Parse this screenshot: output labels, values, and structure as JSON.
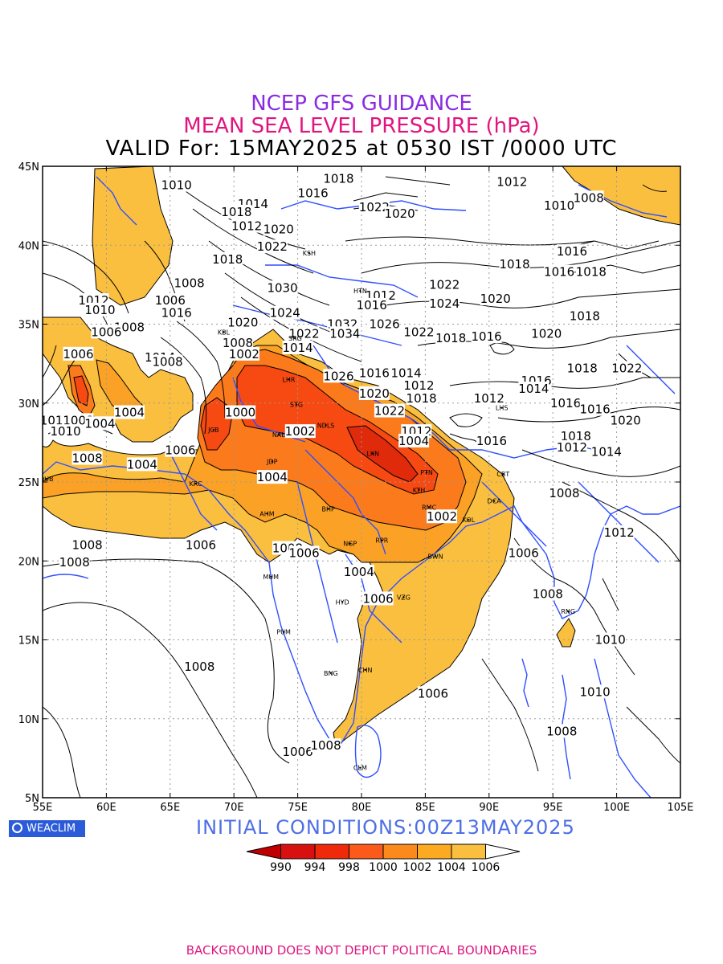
{
  "header": {
    "line1": "NCEP GFS GUIDANCE",
    "line2": "MEAN SEA LEVEL PRESSURE (hPa)",
    "line3": "VALID For: 15MAY2025 at 0530 IST /0000 UTC"
  },
  "footer": {
    "logo_text": "WEACLIM",
    "initial_conditions": "INITIAL  CONDITIONS:00Z13MAY2025",
    "disclaimer": "BACKGROUND DOES NOT DEPICT POLITICAL BOUNDARIES"
  },
  "axes": {
    "lon_range": [
      55,
      105
    ],
    "lat_range": [
      5,
      45
    ],
    "lon_ticks": [
      "55E",
      "60E",
      "65E",
      "70E",
      "75E",
      "80E",
      "85E",
      "90E",
      "95E",
      "100E",
      "105E"
    ],
    "lat_ticks": [
      "5N",
      "10N",
      "15N",
      "20N",
      "25N",
      "30N",
      "35N",
      "40N",
      "45N"
    ],
    "grid": "dotted"
  },
  "colorbar": {
    "ticks": [
      "990",
      "994",
      "998",
      "1000",
      "1002",
      "1004",
      "1006"
    ],
    "colors": [
      "#c00000",
      "#d81010",
      "#ee2a0a",
      "#fb5a1a",
      "#fb8a1c",
      "#fbaa22",
      "#fbbf3f",
      "#ffffff"
    ]
  },
  "colors": {
    "shade_1006": "#fbbf3f",
    "shade_1004": "#fba226",
    "shade_1002": "#fb7a1c",
    "shade_1000": "#f64a12",
    "coastline": "#2f4fff",
    "contour": "#000000"
  },
  "cities": [
    {
      "name": "KSH",
      "lon": 75.9,
      "lat": 39.5
    },
    {
      "name": "HTN",
      "lon": 79.9,
      "lat": 37.1
    },
    {
      "name": "KBL",
      "lon": 69.2,
      "lat": 34.5
    },
    {
      "name": "SRG",
      "lon": 74.8,
      "lat": 34.1
    },
    {
      "name": "LHR",
      "lon": 74.3,
      "lat": 31.5
    },
    {
      "name": "STG",
      "lon": 74.9,
      "lat": 29.9
    },
    {
      "name": "JCB",
      "lon": 68.4,
      "lat": 28.3
    },
    {
      "name": "NAL",
      "lon": 73.5,
      "lat": 28.0
    },
    {
      "name": "NDLS",
      "lon": 77.2,
      "lat": 28.6
    },
    {
      "name": "JDP",
      "lon": 73.0,
      "lat": 26.3
    },
    {
      "name": "LKN",
      "lon": 80.9,
      "lat": 26.8
    },
    {
      "name": "PTN",
      "lon": 85.1,
      "lat": 25.6
    },
    {
      "name": "KTH",
      "lon": 84.5,
      "lat": 24.5
    },
    {
      "name": "KRC",
      "lon": 67.0,
      "lat": 24.9
    },
    {
      "name": "DUB",
      "lon": 55.3,
      "lat": 25.2
    },
    {
      "name": "AHM",
      "lon": 72.6,
      "lat": 23.0
    },
    {
      "name": "BHP",
      "lon": 77.4,
      "lat": 23.3
    },
    {
      "name": "RMC",
      "lon": 85.3,
      "lat": 23.4
    },
    {
      "name": "KOL",
      "lon": 88.4,
      "lat": 22.6
    },
    {
      "name": "NGP",
      "lon": 79.1,
      "lat": 21.1
    },
    {
      "name": "RPR",
      "lon": 81.6,
      "lat": 21.3
    },
    {
      "name": "BWN",
      "lon": 85.8,
      "lat": 20.3
    },
    {
      "name": "MUM",
      "lon": 72.9,
      "lat": 19.0
    },
    {
      "name": "HYD",
      "lon": 78.5,
      "lat": 17.4
    },
    {
      "name": "VZG",
      "lon": 83.3,
      "lat": 17.7
    },
    {
      "name": "PUM",
      "lon": 73.9,
      "lat": 15.5
    },
    {
      "name": "BNG",
      "lon": 77.6,
      "lat": 12.9
    },
    {
      "name": "CHN",
      "lon": 80.3,
      "lat": 13.1
    },
    {
      "name": "CLM",
      "lon": 79.9,
      "lat": 6.9
    },
    {
      "name": "RNG",
      "lon": 96.2,
      "lat": 16.8
    },
    {
      "name": "DCA",
      "lon": 90.4,
      "lat": 23.8
    },
    {
      "name": "CBT",
      "lon": 91.1,
      "lat": 25.5
    },
    {
      "name": "LHS",
      "lon": 91.0,
      "lat": 29.7
    }
  ],
  "contour_labels": [
    {
      "text": "1010",
      "lon": 65.5,
      "lat": 43.8
    },
    {
      "text": "1018",
      "lon": 78.2,
      "lat": 44.2
    },
    {
      "text": "1016",
      "lon": 76.2,
      "lat": 43.3
    },
    {
      "text": "1014",
      "lon": 71.5,
      "lat": 42.6
    },
    {
      "text": "1018",
      "lon": 70.2,
      "lat": 42.1
    },
    {
      "text": "1022",
      "lon": 81.0,
      "lat": 42.4
    },
    {
      "text": "1020",
      "lon": 83.0,
      "lat": 42.0
    },
    {
      "text": "1012",
      "lon": 91.8,
      "lat": 44.0
    },
    {
      "text": "1008",
      "lon": 97.8,
      "lat": 43.0
    },
    {
      "text": "1010",
      "lon": 95.5,
      "lat": 42.5
    },
    {
      "text": "1012",
      "lon": 71.0,
      "lat": 41.2
    },
    {
      "text": "1020",
      "lon": 73.5,
      "lat": 41.0
    },
    {
      "text": "1022",
      "lon": 73.0,
      "lat": 39.9
    },
    {
      "text": "1018",
      "lon": 69.5,
      "lat": 39.1
    },
    {
      "text": "1016",
      "lon": 96.5,
      "lat": 39.6
    },
    {
      "text": "1018",
      "lon": 92.0,
      "lat": 38.8
    },
    {
      "text": "1016",
      "lon": 95.5,
      "lat": 38.3
    },
    {
      "text": "1018",
      "lon": 98.0,
      "lat": 38.3
    },
    {
      "text": "1008",
      "lon": 66.5,
      "lat": 37.6
    },
    {
      "text": "1030",
      "lon": 73.8,
      "lat": 37.3
    },
    {
      "text": "1022",
      "lon": 86.5,
      "lat": 37.5
    },
    {
      "text": "1012",
      "lon": 81.5,
      "lat": 36.8
    },
    {
      "text": "1020",
      "lon": 90.5,
      "lat": 36.6
    },
    {
      "text": "1012",
      "lon": 59.0,
      "lat": 36.5
    },
    {
      "text": "1006",
      "lon": 65.0,
      "lat": 36.5
    },
    {
      "text": "1024",
      "lon": 86.5,
      "lat": 36.3
    },
    {
      "text": "1016",
      "lon": 80.8,
      "lat": 36.2
    },
    {
      "text": "1010",
      "lon": 59.5,
      "lat": 35.9
    },
    {
      "text": "1016",
      "lon": 65.5,
      "lat": 35.7
    },
    {
      "text": "1024",
      "lon": 74.0,
      "lat": 35.7
    },
    {
      "text": "1018",
      "lon": 97.5,
      "lat": 35.5
    },
    {
      "text": "1020",
      "lon": 70.7,
      "lat": 35.1
    },
    {
      "text": "1026",
      "lon": 81.8,
      "lat": 35.0
    },
    {
      "text": "1008",
      "lon": 61.8,
      "lat": 34.8
    },
    {
      "text": "1032",
      "lon": 78.5,
      "lat": 35.0
    },
    {
      "text": "1022",
      "lon": 84.5,
      "lat": 34.5
    },
    {
      "text": "1006",
      "lon": 60.0,
      "lat": 34.5
    },
    {
      "text": "1034",
      "lon": 78.7,
      "lat": 34.4
    },
    {
      "text": "1022",
      "lon": 75.5,
      "lat": 34.4
    },
    {
      "text": "1018",
      "lon": 87.0,
      "lat": 34.1
    },
    {
      "text": "1016",
      "lon": 89.8,
      "lat": 34.2
    },
    {
      "text": "1020",
      "lon": 94.5,
      "lat": 34.4
    },
    {
      "text": "1008",
      "lon": 70.3,
      "lat": 33.8
    },
    {
      "text": "1014",
      "lon": 75.0,
      "lat": 33.5
    },
    {
      "text": "1002",
      "lon": 70.8,
      "lat": 33.1
    },
    {
      "text": "1006",
      "lon": 57.8,
      "lat": 33.1
    },
    {
      "text": "1014",
      "lon": 64.2,
      "lat": 32.9
    },
    {
      "text": "1008",
      "lon": 64.8,
      "lat": 32.6
    },
    {
      "text": "1018",
      "lon": 97.3,
      "lat": 32.2
    },
    {
      "text": "1022",
      "lon": 100.8,
      "lat": 32.2
    },
    {
      "text": "1026",
      "lon": 78.2,
      "lat": 31.7
    },
    {
      "text": "1016",
      "lon": 81.0,
      "lat": 31.9
    },
    {
      "text": "1014",
      "lon": 83.5,
      "lat": 31.9
    },
    {
      "text": "1016",
      "lon": 93.7,
      "lat": 31.4
    },
    {
      "text": "1012",
      "lon": 84.5,
      "lat": 31.1
    },
    {
      "text": "1014",
      "lon": 93.5,
      "lat": 30.9
    },
    {
      "text": "1020",
      "lon": 81.0,
      "lat": 30.6
    },
    {
      "text": "1018",
      "lon": 84.7,
      "lat": 30.3
    },
    {
      "text": "1012",
      "lon": 90.0,
      "lat": 30.3
    },
    {
      "text": "1016",
      "lon": 96.0,
      "lat": 30.0
    },
    {
      "text": "1016",
      "lon": 98.3,
      "lat": 29.6
    },
    {
      "text": "1022",
      "lon": 82.2,
      "lat": 29.5
    },
    {
      "text": "1012",
      "lon": 56.0,
      "lat": 28.9
    },
    {
      "text": "1008",
      "lon": 57.8,
      "lat": 28.9
    },
    {
      "text": "1004",
      "lon": 59.5,
      "lat": 28.7
    },
    {
      "text": "1004",
      "lon": 61.8,
      "lat": 29.4
    },
    {
      "text": "1000",
      "lon": 70.5,
      "lat": 29.4
    },
    {
      "text": "1020",
      "lon": 100.7,
      "lat": 28.9
    },
    {
      "text": "1010",
      "lon": 56.8,
      "lat": 28.2
    },
    {
      "text": "1002",
      "lon": 75.2,
      "lat": 28.2
    },
    {
      "text": "1012",
      "lon": 84.3,
      "lat": 28.2
    },
    {
      "text": "1018",
      "lon": 96.8,
      "lat": 27.9
    },
    {
      "text": "1004",
      "lon": 84.1,
      "lat": 27.6
    },
    {
      "text": "1016",
      "lon": 90.2,
      "lat": 27.6
    },
    {
      "text": "1012",
      "lon": 96.5,
      "lat": 27.2
    },
    {
      "text": "1006",
      "lon": 65.8,
      "lat": 27.0
    },
    {
      "text": "1014",
      "lon": 99.2,
      "lat": 26.9
    },
    {
      "text": "1008",
      "lon": 58.5,
      "lat": 26.5
    },
    {
      "text": "1004",
      "lon": 62.8,
      "lat": 26.1
    },
    {
      "text": "1004",
      "lon": 73.0,
      "lat": 25.3
    },
    {
      "text": "1008",
      "lon": 95.9,
      "lat": 24.3
    },
    {
      "text": "1002",
      "lon": 86.3,
      "lat": 22.8
    },
    {
      "text": "1012",
      "lon": 100.2,
      "lat": 21.8
    },
    {
      "text": "1008",
      "lon": 58.5,
      "lat": 21.0
    },
    {
      "text": "1006",
      "lon": 67.4,
      "lat": 21.0
    },
    {
      "text": "1008",
      "lon": 74.2,
      "lat": 20.8
    },
    {
      "text": "1006",
      "lon": 75.5,
      "lat": 20.5
    },
    {
      "text": "1006",
      "lon": 92.7,
      "lat": 20.5
    },
    {
      "text": "1008",
      "lon": 57.5,
      "lat": 19.9
    },
    {
      "text": "1004",
      "lon": 79.8,
      "lat": 19.3
    },
    {
      "text": "1006",
      "lon": 81.3,
      "lat": 17.6
    },
    {
      "text": "1008",
      "lon": 94.6,
      "lat": 17.9
    },
    {
      "text": "1010",
      "lon": 99.5,
      "lat": 15.0
    },
    {
      "text": "1008",
      "lon": 67.3,
      "lat": 13.3
    },
    {
      "text": "1006",
      "lon": 85.6,
      "lat": 11.6
    },
    {
      "text": "1010",
      "lon": 98.3,
      "lat": 11.7
    },
    {
      "text": "1008",
      "lon": 95.7,
      "lat": 9.2
    },
    {
      "text": "1006",
      "lon": 75.0,
      "lat": 7.9
    },
    {
      "text": "1008",
      "lon": 77.2,
      "lat": 8.3
    }
  ]
}
